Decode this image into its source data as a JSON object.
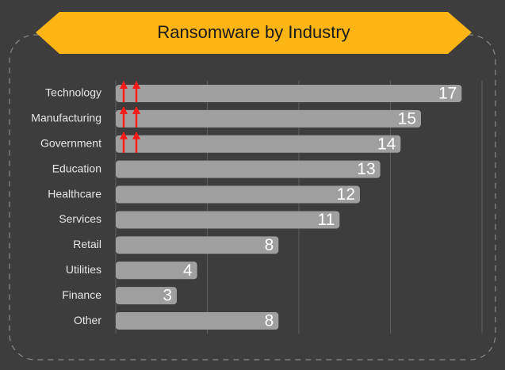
{
  "chart_data": {
    "type": "bar",
    "orientation": "horizontal",
    "title": "Ransomware by Industry",
    "categories": [
      "Technology",
      "Manufacturing",
      "Government",
      "Education",
      "Healthcare",
      "Services",
      "Retail",
      "Utilities",
      "Finance",
      "Other"
    ],
    "values": [
      17,
      15,
      14,
      13,
      12,
      11,
      8,
      4,
      3,
      8
    ],
    "color": "#9f9f9f",
    "xlim": [
      0,
      18
    ],
    "xticks": [
      0,
      4.5,
      9,
      13.5,
      18
    ],
    "grid": true
  }
}
